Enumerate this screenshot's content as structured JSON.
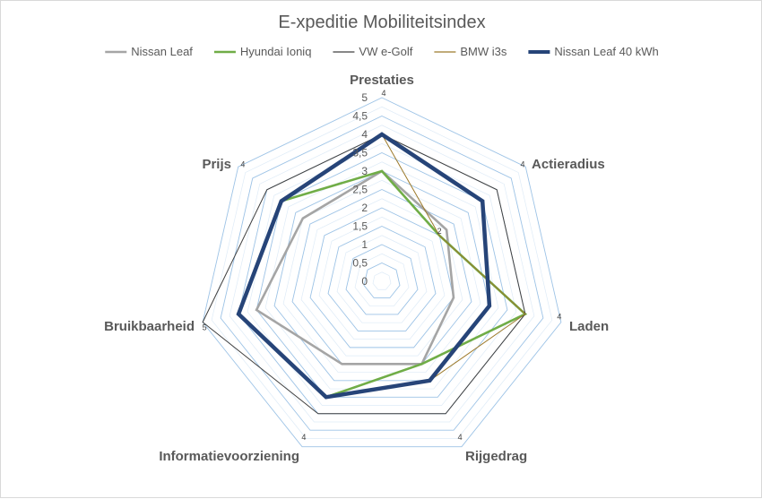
{
  "chart_data": {
    "type": "radar",
    "title": "E-xpeditie Mobiliteitsindex",
    "categories": [
      "Prestaties",
      "Actieradius",
      "Laden",
      "Rijgedrag",
      "Informatievoorziening",
      "Bruikbaarheid",
      "Prijs"
    ],
    "rlim": [
      0,
      5
    ],
    "rticks": [
      "0",
      "0,5",
      "1",
      "1,5",
      "2",
      "2,5",
      "3",
      "3,5",
      "4",
      "4,5",
      "5"
    ],
    "grid": true,
    "legend_position": "top",
    "series": [
      {
        "name": "Nissan Leaf",
        "color": "#a5a5a5",
        "values": [
          3,
          2.25,
          2,
          2.5,
          2.5,
          3.5,
          2.75
        ]
      },
      {
        "name": "Hyundai Ioniq",
        "color": "#70ad47",
        "values": [
          3,
          2,
          4,
          2.5,
          3.5,
          4,
          3.5
        ]
      },
      {
        "name": "VW e-Golf",
        "color": "#404040",
        "values": [
          4,
          4,
          4,
          4,
          4,
          5,
          4
        ]
      },
      {
        "name": "BMW i3s",
        "color": "#9c7a2b",
        "values": [
          4,
          2,
          4,
          3,
          3.5,
          4,
          3.5
        ]
      },
      {
        "name": "Nissan Leaf 40 kWh",
        "color": "#264478",
        "values": [
          4,
          3.5,
          3,
          3,
          3.5,
          4,
          3.5
        ]
      }
    ],
    "point_labels": [
      {
        "category": "Prestaties",
        "text": "4"
      },
      {
        "category": "Actieradius",
        "text": "4"
      },
      {
        "category": "Actieradius",
        "text": "2",
        "ref": 2
      },
      {
        "category": "Laden",
        "text": "4"
      },
      {
        "category": "Rijgedrag",
        "text": "4"
      },
      {
        "category": "Informatievoorziening",
        "text": "4"
      },
      {
        "category": "Bruikbaarheid",
        "text": "5"
      },
      {
        "category": "Prijs",
        "text": "4"
      }
    ]
  }
}
